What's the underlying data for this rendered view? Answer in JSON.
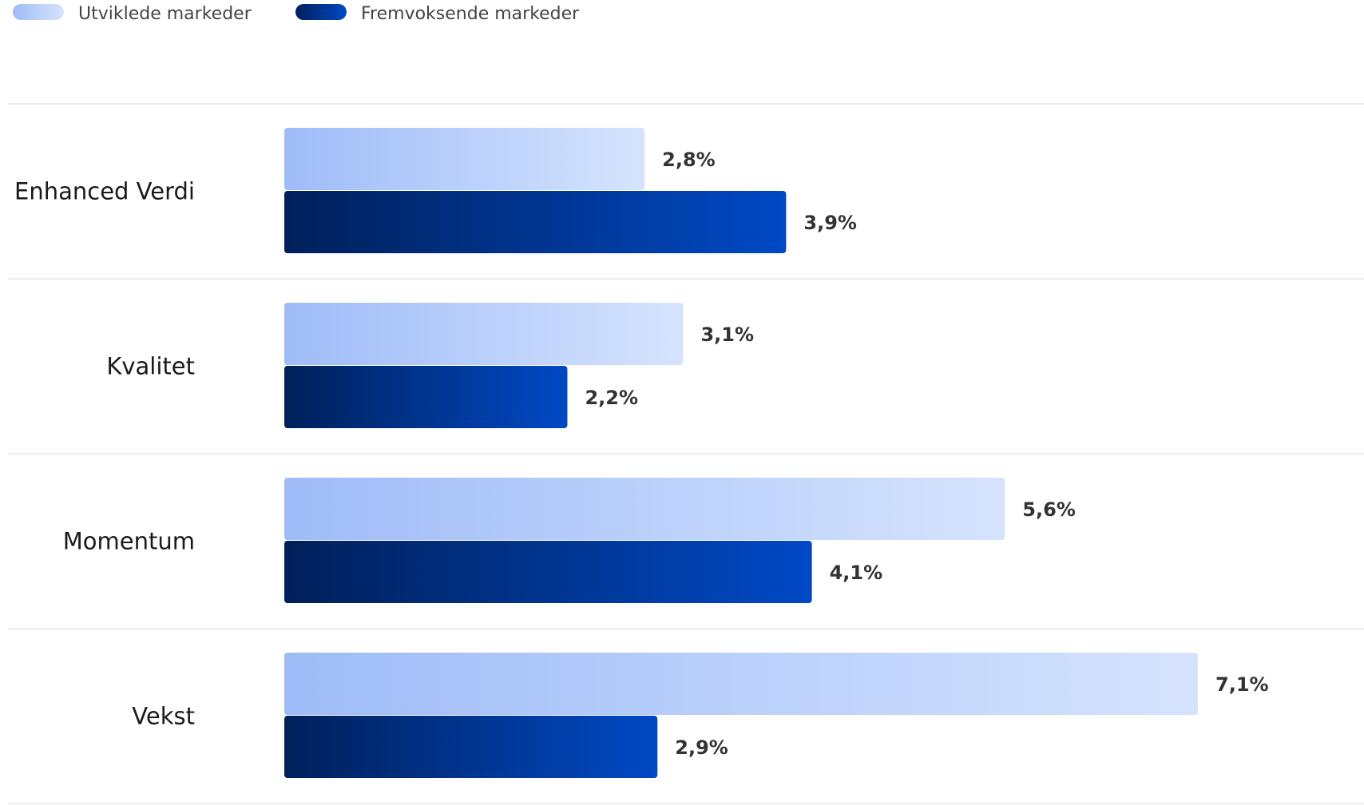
{
  "chart_data": {
    "type": "bar",
    "orientation": "horizontal",
    "categories": [
      "Enhanced Verdi",
      "Kvalitet",
      "Momentum",
      "Vekst"
    ],
    "series": [
      {
        "name": "Utviklede markeder",
        "values": [
          2.8,
          3.1,
          5.6,
          7.1
        ],
        "labels": [
          "2,8%",
          "3,1%",
          "5,6%",
          "7,1%"
        ],
        "color_from": "#9fbcf8",
        "color_to": "#d5e3fd"
      },
      {
        "name": "Fremvoksende markeder",
        "values": [
          3.9,
          2.2,
          4.1,
          2.9
        ],
        "labels": [
          "3,9%",
          "2,2%",
          "4,1%",
          "2,9%"
        ],
        "color_from": "#00205a",
        "color_to": "#0049c5"
      }
    ],
    "xlim": [
      0,
      7.1
    ],
    "legend_position": "top-left",
    "grid": false
  }
}
